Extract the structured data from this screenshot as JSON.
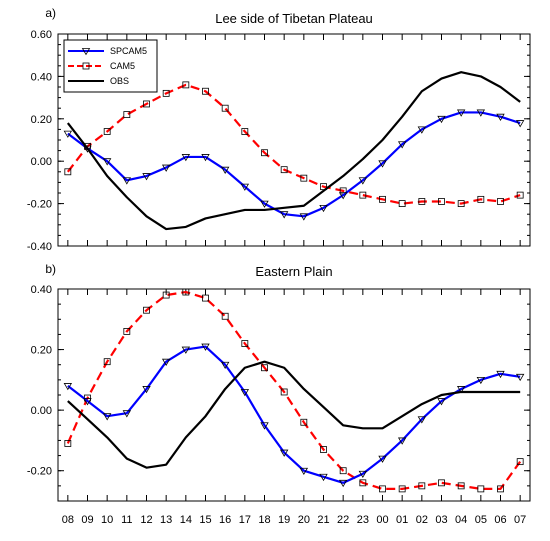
{
  "chart_data": [
    {
      "type": "line",
      "panel_label": "a)",
      "title": "Lee side of Tibetan Plateau",
      "xlabel": "",
      "ylabel": "",
      "categories": [
        "08",
        "09",
        "10",
        "11",
        "12",
        "13",
        "14",
        "15",
        "16",
        "17",
        "18",
        "19",
        "20",
        "21",
        "22",
        "23",
        "00",
        "01",
        "02",
        "03",
        "04",
        "05",
        "06",
        "07"
      ],
      "ylim": [
        -0.4,
        0.6
      ],
      "yticks": [
        "-0.40",
        "-0.20",
        "0.00",
        "0.20",
        "0.40",
        "0.60"
      ],
      "legend": {
        "placement": "top-left",
        "entries": [
          "SPCAM5",
          "CAM5",
          "OBS"
        ]
      },
      "series": [
        {
          "name": "SPCAM5",
          "color": "#0000ff",
          "marker": "triangle-down",
          "dash": "solid",
          "values": [
            0.13,
            0.06,
            0.0,
            -0.09,
            -0.07,
            -0.03,
            0.02,
            0.02,
            -0.04,
            -0.12,
            -0.2,
            -0.25,
            -0.26,
            -0.22,
            -0.16,
            -0.09,
            -0.01,
            0.08,
            0.15,
            0.2,
            0.23,
            0.23,
            0.21,
            0.18
          ]
        },
        {
          "name": "CAM5",
          "color": "#ff0000",
          "marker": "square",
          "dash": "dashed",
          "values": [
            -0.05,
            0.07,
            0.14,
            0.22,
            0.27,
            0.32,
            0.36,
            0.33,
            0.25,
            0.14,
            0.04,
            -0.04,
            -0.08,
            -0.12,
            -0.14,
            -0.16,
            -0.18,
            -0.2,
            -0.19,
            -0.19,
            -0.2,
            -0.18,
            -0.19,
            -0.16
          ]
        },
        {
          "name": "OBS",
          "color": "#000000",
          "marker": "none",
          "dash": "solid",
          "values": [
            0.18,
            0.06,
            -0.07,
            -0.17,
            -0.26,
            -0.32,
            -0.31,
            -0.27,
            -0.25,
            -0.23,
            -0.23,
            -0.22,
            -0.21,
            -0.14,
            -0.07,
            0.01,
            0.1,
            0.21,
            0.33,
            0.39,
            0.42,
            0.4,
            0.35,
            0.28
          ]
        }
      ]
    },
    {
      "type": "line",
      "panel_label": "b)",
      "title": "Eastern Plain",
      "xlabel": "",
      "ylabel": "",
      "categories": [
        "08",
        "09",
        "10",
        "11",
        "12",
        "13",
        "14",
        "15",
        "16",
        "17",
        "18",
        "19",
        "20",
        "21",
        "22",
        "23",
        "00",
        "01",
        "02",
        "03",
        "04",
        "05",
        "06",
        "07"
      ],
      "ylim": [
        -0.3,
        0.4
      ],
      "yticks": [
        "-0.20",
        "0.00",
        "0.20",
        "0.40"
      ],
      "series": [
        {
          "name": "SPCAM5",
          "color": "#0000ff",
          "marker": "triangle-down",
          "dash": "solid",
          "values": [
            0.08,
            0.03,
            -0.02,
            -0.01,
            0.07,
            0.16,
            0.2,
            0.21,
            0.15,
            0.06,
            -0.05,
            -0.14,
            -0.2,
            -0.22,
            -0.24,
            -0.21,
            -0.16,
            -0.1,
            -0.03,
            0.03,
            0.07,
            0.1,
            0.12,
            0.11
          ]
        },
        {
          "name": "CAM5",
          "color": "#ff0000",
          "marker": "square",
          "dash": "dashed",
          "values": [
            -0.11,
            0.04,
            0.16,
            0.26,
            0.33,
            0.38,
            0.39,
            0.37,
            0.31,
            0.22,
            0.14,
            0.06,
            -0.04,
            -0.13,
            -0.2,
            -0.24,
            -0.26,
            -0.26,
            -0.25,
            -0.24,
            -0.25,
            -0.26,
            -0.26,
            -0.17
          ]
        },
        {
          "name": "OBS",
          "color": "#000000",
          "marker": "none",
          "dash": "solid",
          "values": [
            0.03,
            -0.03,
            -0.09,
            -0.16,
            -0.19,
            -0.18,
            -0.09,
            -0.02,
            0.07,
            0.14,
            0.16,
            0.14,
            0.07,
            0.01,
            -0.05,
            -0.06,
            -0.06,
            -0.02,
            0.02,
            0.05,
            0.06,
            0.06,
            0.06,
            0.06
          ]
        }
      ]
    }
  ]
}
